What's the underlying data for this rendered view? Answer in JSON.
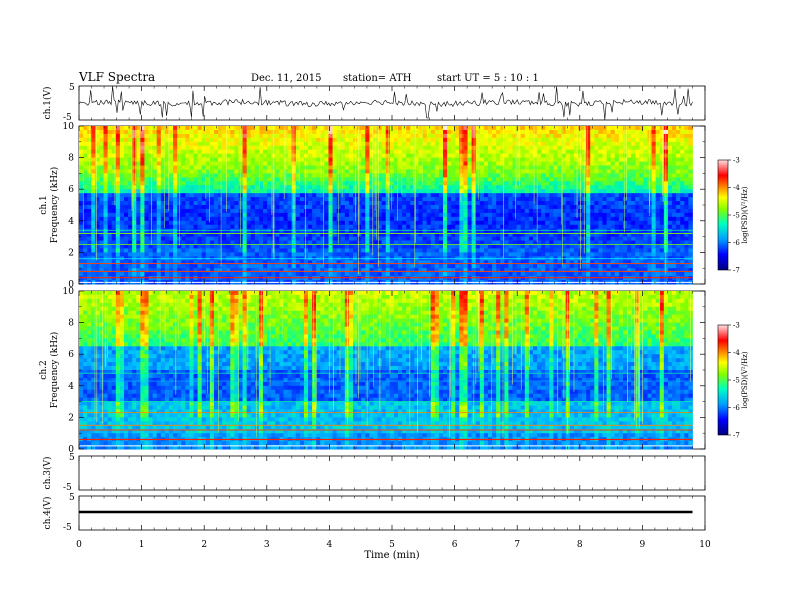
{
  "header": {
    "title": "VLF  Spectra",
    "date": "Dec. 11, 2015",
    "station": "station= ATH",
    "start": "start  UT  =   5  : 10 : 1"
  },
  "chart_data": [
    {
      "type": "line",
      "panel": "ch1-waveform",
      "ylabel": "ch.1(V)",
      "ylim": [
        -5,
        5
      ],
      "yticks": [
        "5",
        "-5"
      ],
      "xlim": [
        0,
        10
      ],
      "description_trace": "noise around 0 V with occasional spikes, recorded 0 to 9.8 min"
    },
    {
      "type": "heatmap",
      "panel": "ch1-spectrogram",
      "ylabel": "ch.1\nFrequency (kHz)",
      "ylabel_line1": "ch.1",
      "ylabel_line2": "Frequency (kHz)",
      "ylim": [
        0,
        10
      ],
      "yticks": [
        "0",
        "2",
        "4",
        "6",
        "8",
        "10"
      ],
      "xlim": [
        0,
        9.8
      ],
      "colorbar": {
        "label": "log(PSD)(V²/Hz)",
        "range": [
          -7,
          -3
        ],
        "ticks": [
          "-3",
          "-4",
          "-5",
          "-6",
          "-7"
        ]
      }
    },
    {
      "type": "heatmap",
      "panel": "ch2-spectrogram",
      "ylabel_line1": "ch.2",
      "ylabel_line2": "Frequency (kHz)",
      "ylim": [
        0,
        10
      ],
      "yticks": [
        "0",
        "2",
        "4",
        "6",
        "8",
        "10"
      ],
      "xlim": [
        0,
        9.8
      ],
      "colorbar": {
        "label": "log(PSD)(V²/Hz)",
        "range": [
          -7,
          -3
        ],
        "ticks": [
          "-3",
          "-4",
          "-5",
          "-6",
          "-7"
        ]
      }
    },
    {
      "type": "line",
      "panel": "ch3-waveform",
      "ylabel": "ch.3(V)",
      "ylim": [
        -5,
        5
      ],
      "yticks": [
        "5",
        "-5"
      ]
    },
    {
      "type": "line",
      "panel": "ch4-waveform",
      "ylabel": "ch.4(V)",
      "ylim": [
        -5,
        5
      ],
      "yticks": [
        "5",
        "-5"
      ],
      "description_trace": "flat trace at about -1 V from 0 to 9.8 min"
    }
  ],
  "xaxis": {
    "label": "Time  (min)",
    "ticks": [
      "0",
      "1",
      "2",
      "3",
      "4",
      "5",
      "6",
      "7",
      "8",
      "9",
      "10"
    ],
    "range": [
      0,
      10
    ]
  },
  "colors": {
    "cmap": [
      "#000080",
      "#0000ff",
      "#0060ff",
      "#00c0ff",
      "#00ffa0",
      "#80ff00",
      "#ffff00",
      "#ff8000",
      "#ff0000",
      "#ffffff"
    ]
  }
}
